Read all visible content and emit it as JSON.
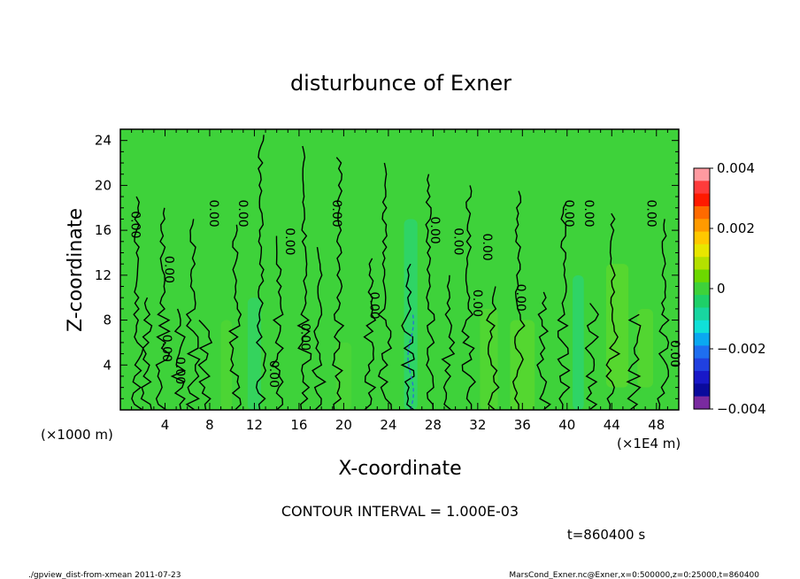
{
  "chart_data": {
    "type": "heatmap",
    "title": "disturbunce of Exner",
    "xlabel": "X-coordinate",
    "ylabel": "Z-coordinate",
    "x_unit_left": "(×1000 m)",
    "x_unit_right": "(×1E4 m)",
    "xlim": [
      0,
      50
    ],
    "ylim": [
      0,
      25
    ],
    "x_ticks": [
      4,
      8,
      12,
      16,
      20,
      24,
      28,
      32,
      36,
      40,
      44,
      48
    ],
    "y_ticks": [
      4,
      8,
      12,
      16,
      20,
      24
    ],
    "colorbar": {
      "range": [
        -0.004,
        0.004
      ],
      "tick_labels": [
        "0.004",
        "0.002",
        "0",
        "−0.002",
        "−0.004"
      ],
      "tick_values": [
        0.004,
        0.002,
        0,
        -0.002,
        -0.004
      ],
      "colors_high_to_low": [
        "#ff9aa0",
        "#ff3b3b",
        "#ff1a00",
        "#ff6a00",
        "#ff9a00",
        "#ffc800",
        "#e8e600",
        "#b4e000",
        "#6cd800",
        "#3ed23a",
        "#1ed068",
        "#18d6a0",
        "#10e0d8",
        "#0aa8f0",
        "#1e6ef0",
        "#2040e0",
        "#1818c8",
        "#0a0a9c",
        "#7a2aa0"
      ]
    },
    "contour_interval": "CONTOUR INTERVAL = 1.000E-03",
    "contour_label": "0.00",
    "time_label": "t=860400 s",
    "dominant_value": 0
  },
  "footer": {
    "left": "./gpview_dist-from-xmean  2011-07-23",
    "right": "MarsCond_Exner.nc@Exner,x=0:500000,z=0:25000,t=860400"
  }
}
